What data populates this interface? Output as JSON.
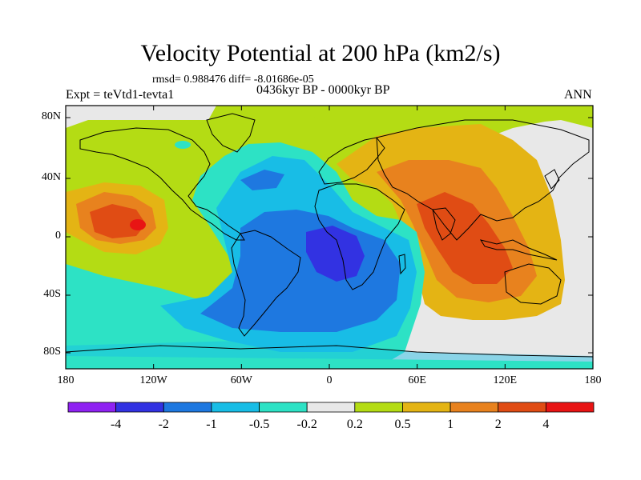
{
  "title": "Velocity Potential at 200 hPa (km2/s)",
  "stats_line": "rmsd= 0.988476 diff= -8.01686e-05",
  "experiment": "Expt = teVtd1-tevta1",
  "period": "0436kyr BP - 0000kyr BP",
  "season": "ANN",
  "lon_labels": [
    "180",
    "120W",
    "60W",
    "0",
    "60E",
    "120E",
    "180"
  ],
  "lat_labels": [
    "80N",
    "40N",
    "0",
    "40S",
    "80S"
  ],
  "colorbar": {
    "labels": [
      "-4",
      "-2",
      "-1",
      "-0.5",
      "-0.2",
      "0.2",
      "0.5",
      "1",
      "2",
      "4"
    ],
    "colors": [
      "#8f22f2",
      "#3232e2",
      "#1e78e0",
      "#18bde6",
      "#2de2c5",
      "#e8e8e8",
      "#b4dc14",
      "#e4b414",
      "#e8821e",
      "#e04c14",
      "#e81414"
    ]
  }
}
